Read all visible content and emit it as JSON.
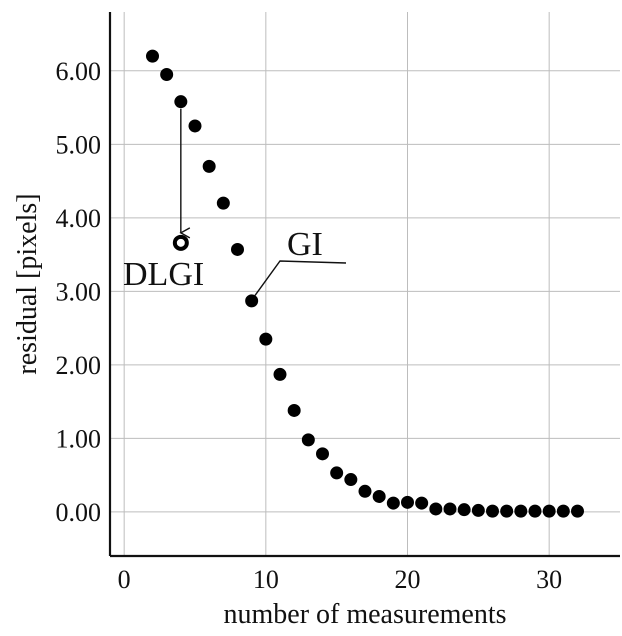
{
  "chart_data": {
    "type": "scatter",
    "title": "",
    "xlabel": "number of measurements",
    "ylabel": "residual [pixels]",
    "xlim": [
      -1,
      35
    ],
    "ylim": [
      -0.6,
      6.8
    ],
    "x_ticks": [
      0,
      10,
      20,
      30
    ],
    "x_tick_labels": [
      "0",
      "10",
      "20",
      "30"
    ],
    "y_ticks": [
      0,
      1,
      2,
      3,
      4,
      5,
      6
    ],
    "y_tick_labels": [
      "0.00",
      "1.00",
      "2.00",
      "3.00",
      "4.00",
      "5.00",
      "6.00"
    ],
    "grid": true,
    "legend": "none",
    "series": [
      {
        "x": [
          2,
          3,
          4,
          5,
          6,
          7,
          8,
          9,
          10,
          11,
          12,
          13,
          14,
          15,
          16,
          17,
          18,
          19,
          20,
          21,
          22,
          23,
          24,
          25,
          26,
          27,
          28,
          29,
          30,
          31,
          32
        ],
        "y": [
          6.2,
          5.95,
          5.58,
          5.25,
          4.7,
          4.2,
          3.57,
          2.87,
          2.35,
          1.87,
          1.38,
          0.98,
          0.79,
          0.53,
          0.44,
          0.28,
          0.21,
          0.12,
          0.13,
          0.12,
          0.04,
          0.04,
          0.03,
          0.02,
          0.01,
          0.01,
          0.01,
          0.01,
          0.01,
          0.01,
          0.01
        ],
        "color": "#000000",
        "marker": "filled-circle"
      }
    ],
    "highlight_point": {
      "x": 4,
      "y": 3.66,
      "marker": "open-circle"
    },
    "annotations": [
      {
        "text": "DLGI",
        "arrow_from": [
          4,
          5.58
        ],
        "arrow_to": [
          4,
          3.66
        ]
      },
      {
        "text": "GI",
        "leader_to": [
          9,
          2.87
        ]
      }
    ]
  }
}
